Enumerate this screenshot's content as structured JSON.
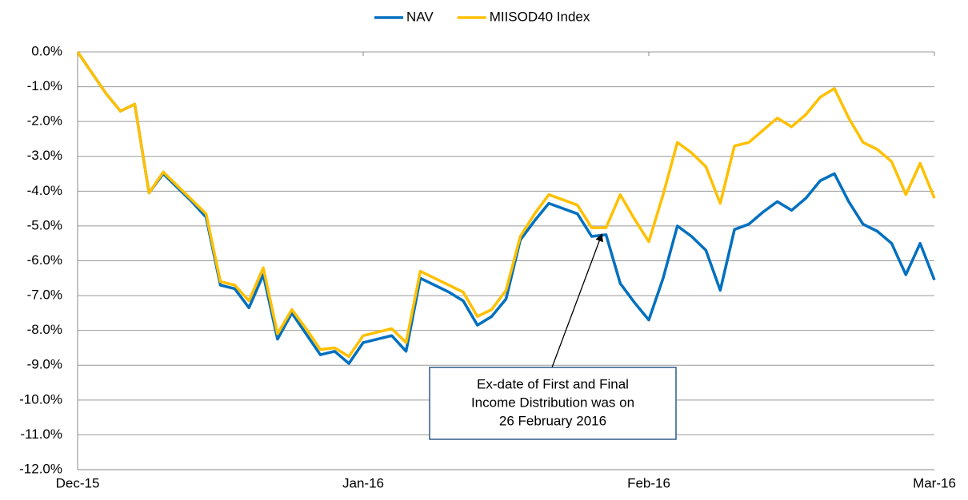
{
  "chart_data": {
    "type": "line",
    "categories": [
      "Dec-15",
      null,
      null,
      null,
      null,
      null,
      null,
      null,
      null,
      null,
      null,
      null,
      null,
      null,
      null,
      null,
      null,
      null,
      null,
      null,
      "Jan-16",
      null,
      null,
      null,
      null,
      null,
      null,
      null,
      null,
      null,
      null,
      null,
      null,
      null,
      null,
      null,
      null,
      null,
      null,
      null,
      "Feb-16",
      null,
      null,
      null,
      null,
      null,
      null,
      null,
      null,
      null,
      null,
      null,
      null,
      null,
      null,
      null,
      null,
      null,
      null,
      null,
      "Mar-16"
    ],
    "series": [
      {
        "name": "NAV",
        "color": "#0070c0",
        "values": [
          0,
          -0.6,
          -1.2,
          -1.7,
          -1.5,
          -4.05,
          -3.5,
          -3.9,
          -4.3,
          -4.75,
          -6.7,
          -6.8,
          -7.35,
          -6.4,
          -8.25,
          -7.5,
          -8.1,
          -8.7,
          -8.6,
          -8.95,
          -8.35,
          -8.25,
          -8.15,
          -8.6,
          -6.5,
          -6.7,
          -6.9,
          -7.15,
          -7.85,
          -7.6,
          -7.1,
          -5.4,
          -4.85,
          -4.35,
          -4.5,
          -4.65,
          -5.3,
          -5.25,
          -6.65,
          -7.2,
          -7.7,
          -6.5,
          -5.0,
          -5.3,
          -5.7,
          -6.85,
          -5.1,
          -4.95,
          -4.6,
          -4.3,
          -4.55,
          -4.2,
          -3.7,
          -3.5,
          -4.3,
          -4.95,
          -5.15,
          -5.5,
          -6.4,
          -5.5,
          -6.55
        ]
      },
      {
        "name": "MIISOD40 Index",
        "color": "#ffc000",
        "values": [
          0,
          -0.6,
          -1.2,
          -1.7,
          -1.5,
          -4.05,
          -3.45,
          -3.85,
          -4.25,
          -4.65,
          -6.6,
          -6.7,
          -7.15,
          -6.2,
          -8.1,
          -7.4,
          -7.95,
          -8.55,
          -8.5,
          -8.75,
          -8.15,
          -8.05,
          -7.95,
          -8.35,
          -6.3,
          -6.5,
          -6.7,
          -6.9,
          -7.6,
          -7.4,
          -6.85,
          -5.3,
          -4.65,
          -4.1,
          -4.25,
          -4.4,
          -5.05,
          -5.05,
          -4.1,
          -4.8,
          -5.45,
          -4.1,
          -2.6,
          -2.9,
          -3.3,
          -4.35,
          -2.7,
          -2.6,
          -2.25,
          -1.9,
          -2.15,
          -1.8,
          -1.3,
          -1.05,
          -1.9,
          -2.6,
          -2.8,
          -3.15,
          -4.1,
          -3.2,
          -4.2
        ]
      }
    ],
    "ylim": [
      -12,
      0
    ],
    "yticks": [
      {
        "value": -12,
        "label": "-12.0%"
      },
      {
        "value": -11,
        "label": "-11.0%"
      },
      {
        "value": -10,
        "label": "-10.0%"
      },
      {
        "value": -9,
        "label": "-9.0%"
      },
      {
        "value": -8,
        "label": "-8.0%"
      },
      {
        "value": -7,
        "label": "-7.0%"
      },
      {
        "value": -6,
        "label": "-6.0%"
      },
      {
        "value": -5,
        "label": "-5.0%"
      },
      {
        "value": -4,
        "label": "-4.0%"
      },
      {
        "value": -3,
        "label": "-3.0%"
      },
      {
        "value": -2,
        "label": "-2.0%"
      },
      {
        "value": -1,
        "label": "-1.0%"
      },
      {
        "value": 0,
        "label": "0.0%"
      }
    ],
    "grid": true,
    "legend": "top",
    "annotation": [
      "Ex-date of First and Final",
      "Income Distribution was on",
      "26 February 2016"
    ]
  }
}
